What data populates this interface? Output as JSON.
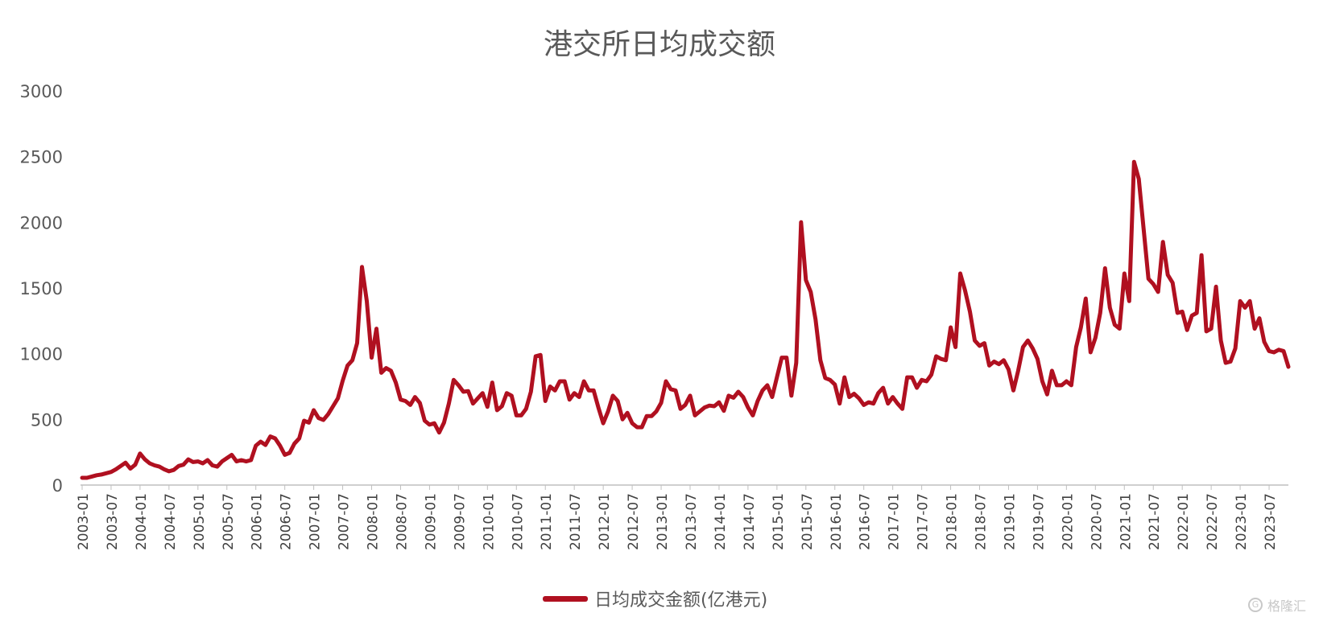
{
  "chart_data": {
    "type": "line",
    "title": "港交所日均成交额",
    "ylim": [
      0,
      3000
    ],
    "yticks": [
      0,
      500,
      1000,
      1500,
      2000,
      2500,
      3000
    ],
    "xticks": [
      "2003-01",
      "2003-07",
      "2004-01",
      "2004-07",
      "2005-01",
      "2005-07",
      "2006-01",
      "2006-07",
      "2007-01",
      "2007-07",
      "2008-01",
      "2008-07",
      "2009-01",
      "2009-07",
      "2010-01",
      "2010-07",
      "2011-01",
      "2011-07",
      "2012-01",
      "2012-07",
      "2013-01",
      "2013-07",
      "2014-01",
      "2014-07",
      "2015-01",
      "2015-07",
      "2016-01",
      "2016-07",
      "2017-01",
      "2017-07",
      "2018-01",
      "2018-07",
      "2019-01",
      "2019-07",
      "2020-01",
      "2020-07",
      "2021-01",
      "2021-07",
      "2022-01",
      "2022-07",
      "2023-01",
      "2023-07"
    ],
    "grid": false,
    "legend_position": "bottom",
    "color": "#b01020",
    "series": [
      {
        "name": "日均成交金额(亿港元)",
        "start": "2003-01",
        "frequency": "monthly",
        "values": [
          55,
          55,
          65,
          75,
          80,
          90,
          100,
          120,
          145,
          170,
          125,
          155,
          240,
          195,
          165,
          150,
          140,
          120,
          105,
          115,
          145,
          155,
          195,
          175,
          180,
          165,
          190,
          150,
          140,
          180,
          205,
          230,
          180,
          190,
          180,
          190,
          300,
          330,
          305,
          370,
          355,
          300,
          230,
          245,
          315,
          355,
          490,
          475,
          570,
          510,
          495,
          540,
          600,
          660,
          795,
          910,
          950,
          1080,
          1660,
          1400,
          970,
          1190,
          855,
          890,
          870,
          780,
          650,
          640,
          610,
          670,
          625,
          490,
          460,
          470,
          400,
          475,
          620,
          800,
          760,
          710,
          715,
          620,
          660,
          700,
          595,
          780,
          570,
          600,
          700,
          680,
          530,
          530,
          580,
          710,
          980,
          990,
          640,
          750,
          720,
          790,
          790,
          650,
          700,
          670,
          790,
          720,
          720,
          590,
          470,
          560,
          680,
          640,
          500,
          550,
          470,
          440,
          440,
          525,
          525,
          560,
          625,
          790,
          730,
          720,
          580,
          610,
          680,
          530,
          560,
          590,
          605,
          600,
          630,
          565,
          680,
          665,
          710,
          670,
          590,
          530,
          640,
          720,
          760,
          670,
          820,
          970,
          970,
          680,
          930,
          2000,
          1560,
          1470,
          1260,
          950,
          815,
          800,
          765,
          620,
          820,
          670,
          695,
          660,
          610,
          630,
          620,
          700,
          740,
          620,
          670,
          620,
          580,
          820,
          820,
          740,
          800,
          790,
          840,
          980,
          960,
          950,
          1200,
          1050,
          1610,
          1480,
          1320,
          1100,
          1060,
          1080,
          910,
          940,
          920,
          950,
          880,
          720,
          870,
          1050,
          1100,
          1040,
          960,
          790,
          690,
          870,
          760,
          760,
          790,
          760,
          1050,
          1200,
          1420,
          1010,
          1120,
          1310,
          1650,
          1350,
          1220,
          1190,
          1610,
          1400,
          2460,
          2330,
          1950,
          1570,
          1530,
          1470,
          1850,
          1600,
          1540,
          1310,
          1320,
          1180,
          1290,
          1310,
          1750,
          1170,
          1190,
          1510,
          1100,
          930,
          940,
          1040,
          1400,
          1350,
          1400,
          1190,
          1270,
          1090,
          1020,
          1010,
          1030,
          1020,
          900
        ]
      }
    ]
  },
  "watermark": "格隆汇"
}
